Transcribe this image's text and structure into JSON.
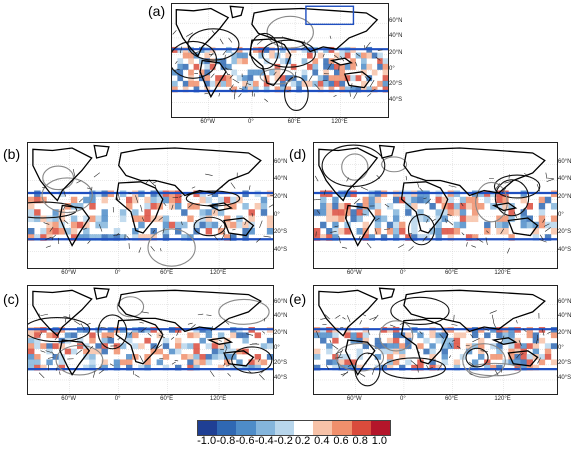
{
  "panels": [
    {
      "id": "a",
      "label": "(a)"
    },
    {
      "id": "b",
      "label": "(b)"
    },
    {
      "id": "c",
      "label": "(c)"
    },
    {
      "id": "d",
      "label": "(d)"
    },
    {
      "id": "e",
      "label": "(e)"
    }
  ],
  "lat_labels": [
    "60°N",
    "40°N",
    "20°N",
    "0°",
    "20°S",
    "40°S"
  ],
  "lon_labels": [
    "60°W",
    "0°",
    "60°E",
    "120°E"
  ],
  "colorbar": {
    "ticks": [
      "-1.0",
      "-0.8",
      "-0.6",
      "-0.4",
      "-0.2",
      "0.2",
      "0.4",
      "0.6",
      "0.8",
      "1.0"
    ],
    "colors": [
      "#1f3f94",
      "#2f68b3",
      "#4e8cc8",
      "#84b5dc",
      "#b8d6ec",
      "#ffffff",
      "#f7c2a8",
      "#f08f6c",
      "#da4b3c",
      "#b4152a"
    ]
  }
}
